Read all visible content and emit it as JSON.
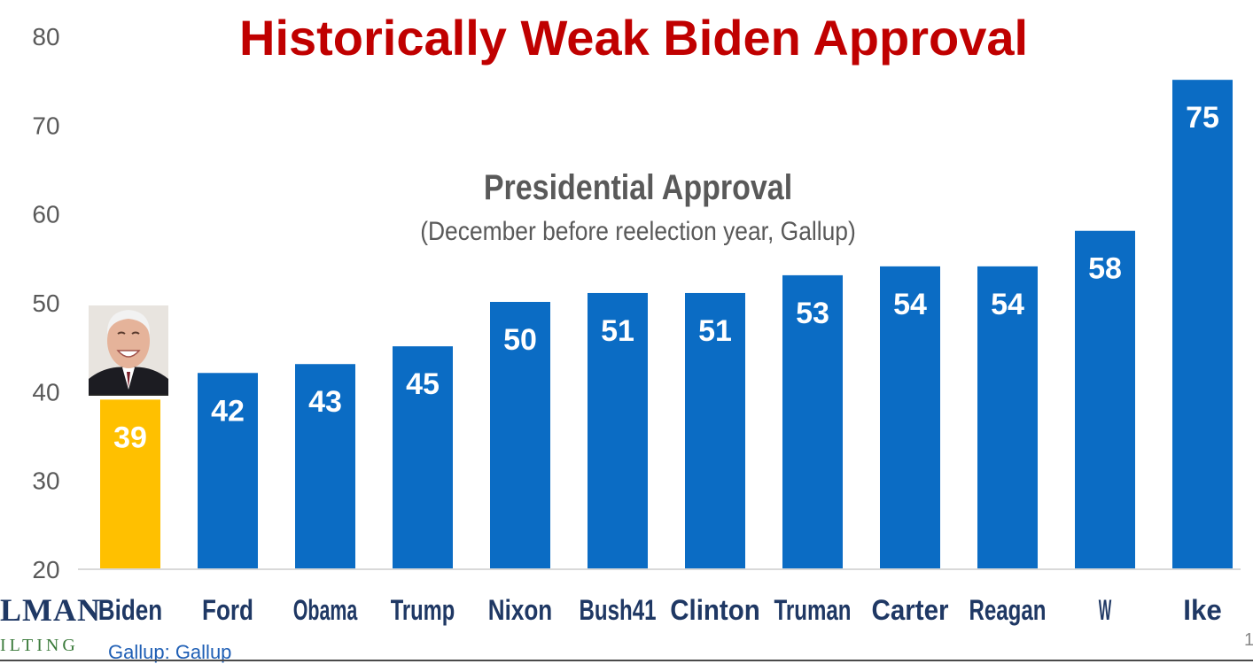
{
  "title": "Historically Weak Biden Approval",
  "subtitle": "Presidential Approval",
  "subsubtitle": "(December before reelection year, Gallup)",
  "source": "Gallup: Gallup",
  "logo": {
    "line1": "LMAN",
    "line2": "ILTING"
  },
  "page_number": "1",
  "colors": {
    "highlight": "#ffc000",
    "bar": "#0b6cc4",
    "title": "#c00000",
    "subtitle": "#595959"
  },
  "photo": {
    "icon": "biden-portrait-icon"
  },
  "chart_data": {
    "type": "bar",
    "categories": [
      "Biden",
      "Ford",
      "Obama",
      "Trump",
      "Nixon",
      "Bush41",
      "Clinton",
      "Truman",
      "Carter",
      "Reagan",
      "W",
      "Ike"
    ],
    "values": [
      39,
      42,
      43,
      45,
      50,
      51,
      51,
      53,
      54,
      54,
      58,
      75
    ],
    "highlight_category": "Biden",
    "ylim": [
      20,
      80
    ],
    "yticks": [
      20,
      30,
      40,
      50,
      60,
      70,
      80
    ],
    "grid": false,
    "legend": "none",
    "xlabel": "",
    "ylabel": ""
  }
}
